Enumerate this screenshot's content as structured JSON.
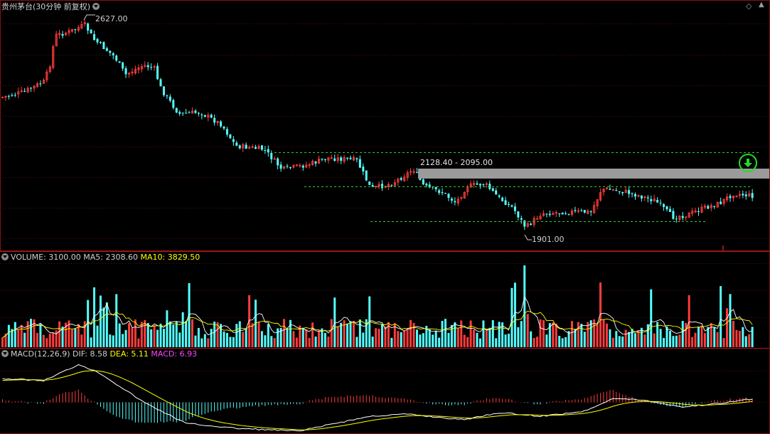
{
  "title": "贵州茅台(30分钟 前复权)",
  "price": {
    "high_label": "2627.00",
    "low_label": "1901.00",
    "zone_label": "2128.40 - 2095.00"
  },
  "volume": {
    "prefix": "VOLUME:",
    "value": "3100.00",
    "ma5_label": "MA5:",
    "ma5_value": "2308.60",
    "ma10_label": "MA10:",
    "ma10_value": "3829.50"
  },
  "macd": {
    "prefix": "MACD(12,26,9)",
    "dif_label": "DIF:",
    "dif_value": "8.58",
    "dea_label": "DEA:",
    "dea_value": "5.11",
    "macd_label": "MACD:",
    "macd_value": "6.93"
  },
  "icons": {
    "collapse": "chevron-down-icon",
    "signal": "down-arrow-circle-icon",
    "pan_up": "triangle-up-icon",
    "pan_down": "triangle-down-icon"
  },
  "colors": {
    "up": "#ff3c3c",
    "down": "#54ffff",
    "ma5": "#ffffff",
    "ma10": "#ffff00",
    "dif": "#ffffff",
    "dea": "#ffff00",
    "macd_label": "#ff44ff",
    "guide": "#2ecc2e",
    "zone": "#9b9b9b"
  }
}
